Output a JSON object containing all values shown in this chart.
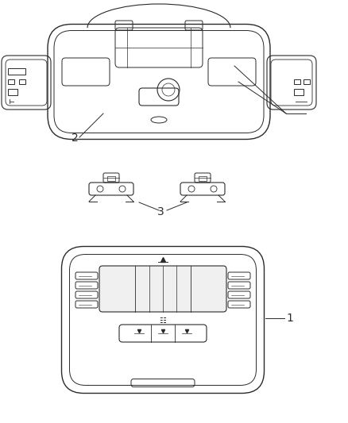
{
  "bg_color": "#ffffff",
  "line_color": "#2a2a2a",
  "label_1": "1",
  "label_2": "2",
  "label_3": "3",
  "fig_width": 4.38,
  "fig_height": 5.33,
  "dpi": 100
}
